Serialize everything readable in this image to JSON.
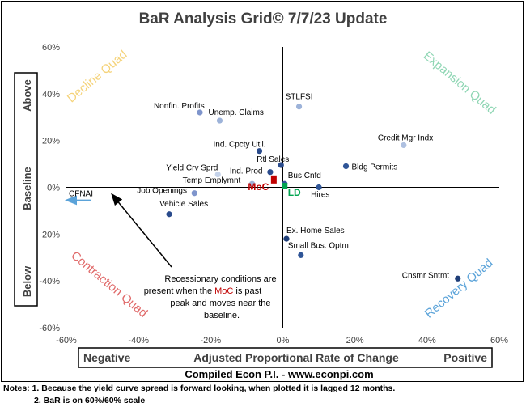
{
  "chart_data": {
    "type": "scatter",
    "title": "BaR Analysis Grid© 7/7/23 Update",
    "xlabel": "Adjusted Proportional Rate of Change",
    "xlabel_left": "Negative",
    "xlabel_right": "Positive",
    "ylabel_top": "Above",
    "ylabel_mid": "Baseline",
    "ylabel_bottom": "Below",
    "xlim": [
      -60,
      60
    ],
    "ylim": [
      -60,
      60
    ],
    "x_ticks": [
      -60,
      -40,
      -20,
      0,
      20,
      40,
      60
    ],
    "y_ticks": [
      -60,
      -40,
      -20,
      0,
      20,
      40,
      60
    ],
    "x_tick_labels": [
      "-60%",
      "-40%",
      "-20%",
      "0%",
      "20%",
      "40%",
      "60%"
    ],
    "y_tick_labels": [
      "-60%",
      "-40%",
      "-20%",
      "0%",
      "20%",
      "40%",
      "60%"
    ],
    "quadrants": [
      {
        "label": "Decline Quad",
        "color": "#f5d37a"
      },
      {
        "label": "Expansion Quad",
        "color": "#8fd6b4"
      },
      {
        "label": "Contraction Quad",
        "color": "#e06a6a"
      },
      {
        "label": "Recovery Quad",
        "color": "#5ba3d9"
      }
    ],
    "points": [
      {
        "label": "STLFSI",
        "x": 4.5,
        "y": 34.5,
        "color": "#9db3d9"
      },
      {
        "label": "Nonfin. Profits",
        "x": -23,
        "y": 32,
        "color": "#7f95cc"
      },
      {
        "label": "Unemp. Claims",
        "x": -17.5,
        "y": 28.5,
        "color": "#9db3d9"
      },
      {
        "label": "Credit Mgr Indx",
        "x": 33.5,
        "y": 18,
        "color": "#aec0e0"
      },
      {
        "label": "Ind. Cpcty Util.",
        "x": -6.5,
        "y": 15.5,
        "color": "#2a4b8c"
      },
      {
        "label": "Rtl Sales",
        "x": -0.5,
        "y": 9.5,
        "color": "#2a4b8c"
      },
      {
        "label": "Bldg Permits",
        "x": 17.5,
        "y": 9,
        "color": "#2f5597"
      },
      {
        "label": "Yield Crv Sprd",
        "x": -18,
        "y": 5.5,
        "color": "#c5d3ea"
      },
      {
        "label": "Ind. Prod",
        "x": -3.5,
        "y": 6.5,
        "color": "#2a4b8c"
      },
      {
        "label": "Bus Cnfd",
        "x": 0.5,
        "y": 1.5,
        "color": "#2f5597"
      },
      {
        "label": "Temp Emplymnt",
        "x": -8.5,
        "y": 1.5,
        "color": "#9db3d9"
      },
      {
        "label": "Job Openings",
        "x": -24.5,
        "y": -2.5,
        "color": "#7f95cc"
      },
      {
        "label": "Hires",
        "x": 10,
        "y": 0,
        "color": "#2f5597"
      },
      {
        "label": "Vehicle Sales",
        "x": -31.5,
        "y": -11.5,
        "color": "#2a4b8c"
      },
      {
        "label": "Ex. Home Sales",
        "x": 1,
        "y": -22,
        "color": "#1f3e78"
      },
      {
        "label": "Small Bus. Optm",
        "x": 5,
        "y": -29,
        "color": "#2f5597"
      },
      {
        "label": "Cnsmr Sntmt",
        "x": 48.5,
        "y": -39,
        "color": "#1f3e78"
      }
    ],
    "special_points": [
      {
        "label": "MoC",
        "x": -2.5,
        "y": 3,
        "color": "#c00000"
      },
      {
        "label": "LD",
        "x": 0.5,
        "y": 0.5,
        "color": "#00a550"
      }
    ],
    "offscreen_point": {
      "label": "CFNAI",
      "y": -5.5,
      "color": "#5ba3d9"
    },
    "annotation": {
      "lines": [
        "Recessionary conditions are",
        "present when the ",
        "MoC",
        " is past",
        "peak and moves near the",
        "baseline."
      ]
    }
  },
  "notes": {
    "line1": "Notes: 1. Because the yield curve spread is forward looking, when plotted it is lagged 12 months.",
    "line2": "2. BaR is on 60%/60% scale"
  },
  "source": "Compiled Econ P.I. - www.econpi.com"
}
